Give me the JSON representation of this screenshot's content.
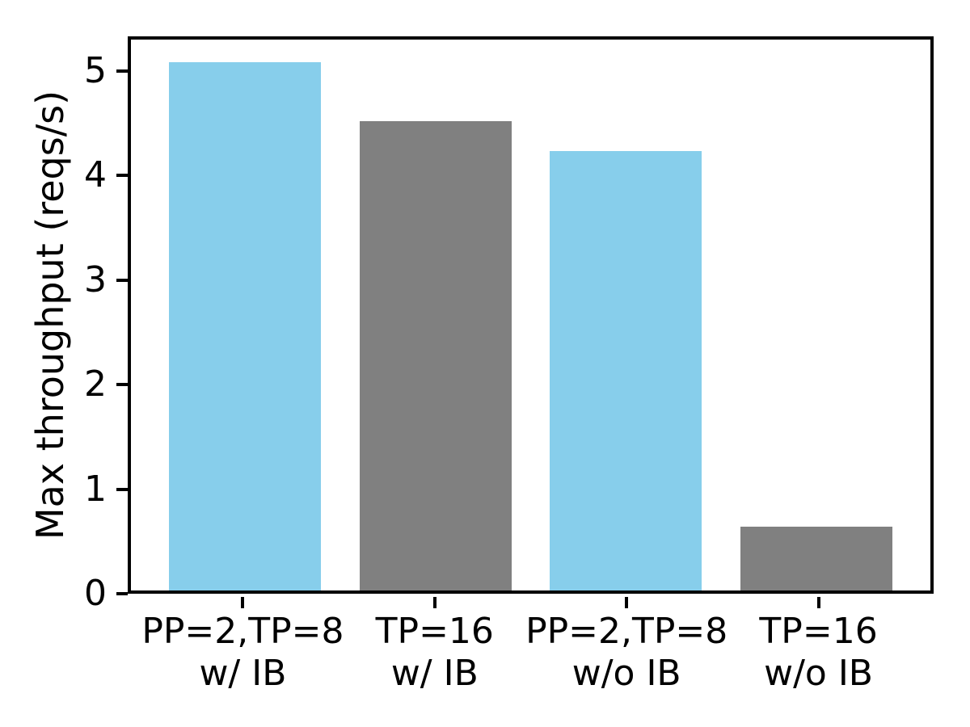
{
  "figure": {
    "background_color": "#ffffff",
    "axis_color": "#000000",
    "text_color": "#000000"
  },
  "chart_data": {
    "type": "bar",
    "ylabel": "Max throughput (reqs/s)",
    "categories": [
      {
        "line1": "PP=2,TP=8",
        "line2": "w/ IB"
      },
      {
        "line1": "TP=16",
        "line2": "w/ IB"
      },
      {
        "line1": "PP=2,TP=8",
        "line2": "w/o IB"
      },
      {
        "line1": "TP=16",
        "line2": "w/o IB"
      }
    ],
    "values": [
      5.08,
      4.52,
      4.23,
      0.64
    ],
    "bar_colors": [
      "#87CEEB",
      "#808080",
      "#87CEEB",
      "#808080"
    ],
    "yticks": [
      0,
      1,
      2,
      3,
      4,
      5
    ],
    "ylim": [
      0,
      5.33
    ],
    "grid": false,
    "legend_position": "none"
  }
}
